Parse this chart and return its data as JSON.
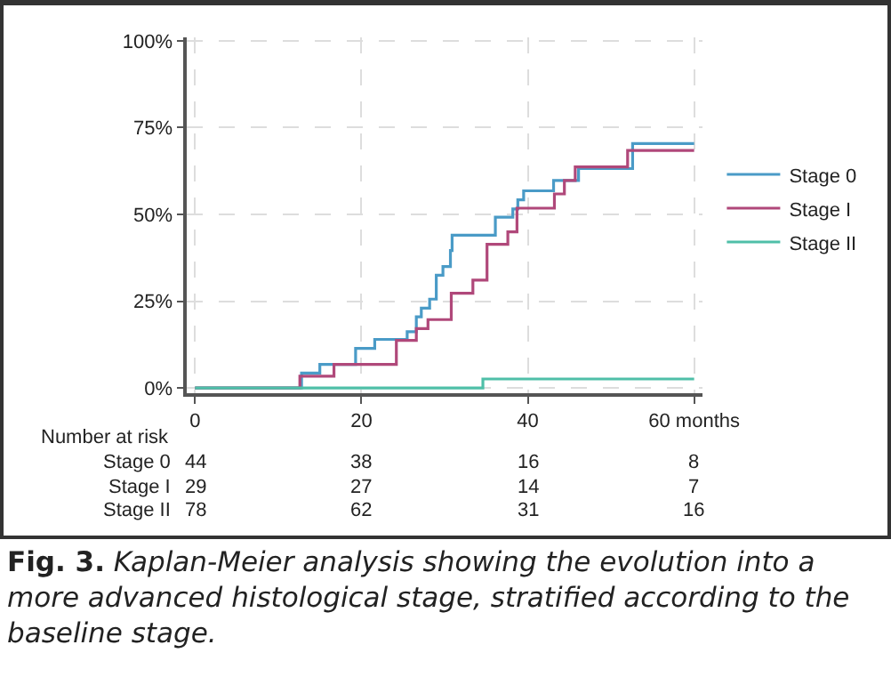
{
  "chart_data": {
    "type": "step",
    "x": [
      0,
      12.8,
      15,
      19.3,
      21.6,
      25.5,
      26.6,
      27.2,
      28.2,
      29,
      29.8,
      30.7,
      30.9,
      36.1,
      38.2,
      38.8,
      39.5,
      43.1,
      46.1,
      52.6,
      60
    ],
    "series": [
      {
        "name": "Stage 0",
        "color": "#4a9bc7",
        "values": [
          0,
          4.3,
          6.8,
          11.4,
          14,
          16.2,
          20.5,
          23,
          25.6,
          32.5,
          35,
          39.6,
          44,
          49.2,
          51.6,
          54.2,
          56.8,
          59.8,
          63.2,
          70.4,
          70.4
        ]
      },
      {
        "name": "Stage I",
        "color": "#b0487a",
        "x": [
          0,
          12.6,
          16.7,
          24.2,
          26.6,
          28,
          30.8,
          33.4,
          35.1,
          37.6,
          38.7,
          43.2,
          44.4,
          45.7,
          52,
          60
        ],
        "values": [
          0,
          3.4,
          6.8,
          13.7,
          17.1,
          19.7,
          27.3,
          31.1,
          41.4,
          45,
          51.8,
          55.9,
          59.8,
          63.7,
          68.4,
          68.4
        ]
      },
      {
        "name": "Stage II",
        "color": "#4fbfa8",
        "x": [
          0,
          34.6,
          60
        ],
        "values": [
          0,
          2.6,
          2.6
        ]
      }
    ],
    "xlim": [
      -1,
      61
    ],
    "ylim": [
      -1.5,
      101
    ],
    "xticks": [
      0,
      20,
      40,
      {
        "value": 60,
        "label": "60 months"
      }
    ],
    "yticks": [
      {
        "value": 0,
        "label": "0%"
      },
      {
        "value": 25,
        "label": "25%"
      },
      {
        "value": 50,
        "label": "50%"
      },
      {
        "value": 75,
        "label": "75%"
      },
      {
        "value": 100,
        "label": "100%"
      }
    ],
    "grid": true,
    "legend": "right",
    "marker": "none",
    "line_style": "solid",
    "annotations": [
      "Number at risk",
      "Stage 0",
      "44",
      "38",
      "16",
      "8",
      "Stage I",
      "29",
      "27",
      "14",
      "7",
      "Stage II",
      "78",
      "62",
      "31",
      "16",
      "Fig. 3.",
      "Kaplan-Meier analysis showing the evolution into a more advanced histological stage, stratified according to the baseline stage."
    ]
  }
}
